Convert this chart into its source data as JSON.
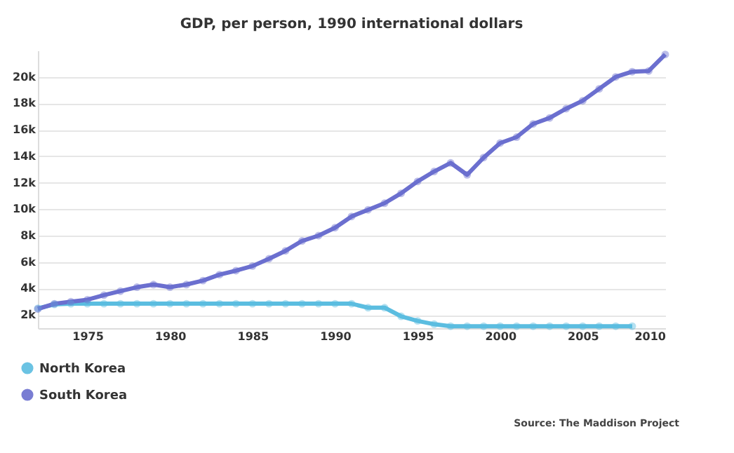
{
  "chart_data": {
    "type": "line",
    "title": "GDP, per person, 1990 international dollars",
    "annotations": [
      "Source: The Maddison Project"
    ],
    "xlim": [
      1972,
      2010
    ],
    "xticks": [
      1975,
      1980,
      1985,
      1990,
      1995,
      2000,
      2005,
      2010
    ],
    "ylim": [
      1000,
      22000
    ],
    "yticks": [
      {
        "value": 2000,
        "label": "2k"
      },
      {
        "value": 4000,
        "label": "4k"
      },
      {
        "value": 6000,
        "label": "6k"
      },
      {
        "value": 8000,
        "label": "8k"
      },
      {
        "value": 10000,
        "label": "10k"
      },
      {
        "value": 12000,
        "label": "12k"
      },
      {
        "value": 14000,
        "label": "14k"
      },
      {
        "value": 16000,
        "label": "16k"
      },
      {
        "value": 18000,
        "label": "18k"
      },
      {
        "value": 20000,
        "label": "20k"
      }
    ],
    "grid": "y",
    "legend": "bottom left",
    "marker": "circle",
    "line_style": "solid",
    "series": [
      {
        "name": "North Korea",
        "color": "#5bbde0",
        "x": [
          1972,
          1973,
          1974,
          1975,
          1976,
          1977,
          1978,
          1979,
          1980,
          1981,
          1982,
          1983,
          1984,
          1985,
          1986,
          1987,
          1988,
          1989,
          1990,
          1991,
          1992,
          1993,
          1994,
          1995,
          1996,
          1997,
          1998,
          1999,
          2000,
          2001,
          2002,
          2003,
          2004,
          2005,
          2006,
          2007,
          2008
        ],
        "values": [
          2500,
          2800,
          2850,
          2850,
          2850,
          2850,
          2850,
          2850,
          2850,
          2850,
          2850,
          2850,
          2850,
          2850,
          2850,
          2850,
          2850,
          2850,
          2850,
          2850,
          2550,
          2550,
          1900,
          1550,
          1300,
          1150,
          1150,
          1150,
          1150,
          1150,
          1150,
          1150,
          1150,
          1150,
          1150,
          1150,
          1150
        ]
      },
      {
        "name": "South Korea",
        "color": "#6b6fcf",
        "x": [
          1972,
          1973,
          1974,
          1975,
          1976,
          1977,
          1978,
          1979,
          1980,
          1981,
          1982,
          1983,
          1984,
          1985,
          1986,
          1987,
          1988,
          1989,
          1990,
          1991,
          1992,
          1993,
          1994,
          1995,
          1996,
          1997,
          1998,
          1999,
          2000,
          2001,
          2002,
          2003,
          2004,
          2005,
          2006,
          2007,
          2008,
          2009,
          2010
        ],
        "values": [
          2450,
          2850,
          3000,
          3150,
          3500,
          3800,
          4100,
          4300,
          4100,
          4300,
          4600,
          5050,
          5350,
          5700,
          6250,
          6850,
          7600,
          8000,
          8600,
          9450,
          9950,
          10450,
          11200,
          12100,
          12850,
          13500,
          12600,
          13900,
          15000,
          15450,
          16450,
          16900,
          17600,
          18200,
          19100,
          20000,
          20400,
          20450,
          21700
        ]
      }
    ]
  }
}
